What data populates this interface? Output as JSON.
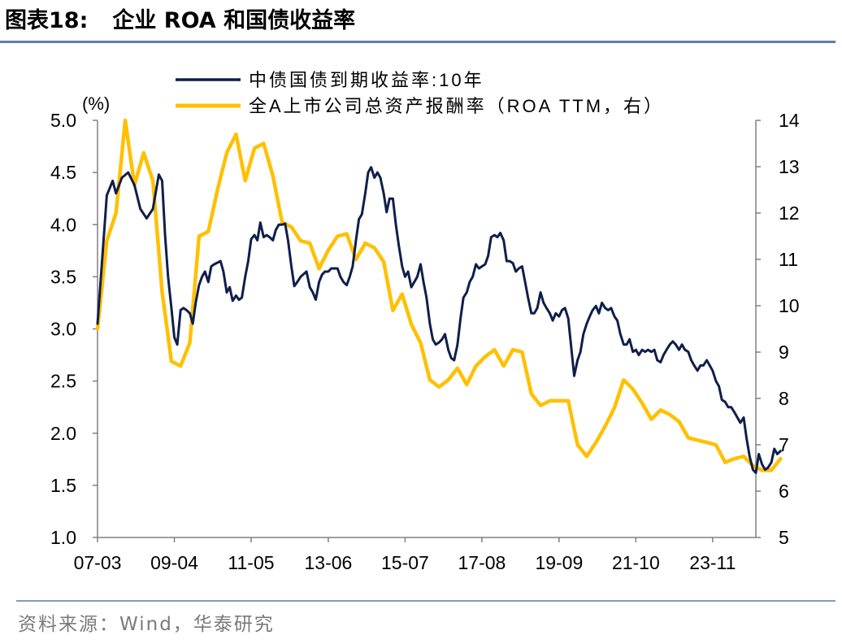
{
  "figure": {
    "title_prefix": "图表18:",
    "title_text": "企业 ROA 和国债收益率",
    "source": "资料来源：Wind，华泰研究"
  },
  "chart_data": {
    "type": "line",
    "left_axis": {
      "unit_label": "(%)",
      "min": 1.0,
      "max": 5.0,
      "ticks": [
        "1.0",
        "1.5",
        "2.0",
        "2.5",
        "3.0",
        "3.5",
        "4.0",
        "4.5",
        "5.0"
      ]
    },
    "right_axis": {
      "min": 5,
      "max": 14,
      "ticks": [
        "5",
        "6",
        "7",
        "8",
        "9",
        "10",
        "11",
        "12",
        "13",
        "14"
      ]
    },
    "x_axis": {
      "start": 2007.17,
      "end": 2025.0,
      "tick_labels": [
        "07-03",
        "09-04",
        "11-05",
        "13-06",
        "15-07",
        "17-08",
        "19-09",
        "21-10",
        "23-11"
      ],
      "tick_positions": [
        2007.17,
        2009.25,
        2011.33,
        2013.42,
        2015.5,
        2017.58,
        2019.67,
        2021.75,
        2023.83
      ]
    },
    "legend_position": "top-center",
    "series": [
      {
        "name": "中债国债到期收益率:10年",
        "axis": "left",
        "color": "#0f1f4b",
        "points": [
          [
            2007.17,
            3.05
          ],
          [
            2007.42,
            4.28
          ],
          [
            2007.58,
            4.42
          ],
          [
            2007.67,
            4.3
          ],
          [
            2007.83,
            4.45
          ],
          [
            2008.0,
            4.5
          ],
          [
            2008.17,
            4.38
          ],
          [
            2008.33,
            4.15
          ],
          [
            2008.5,
            4.06
          ],
          [
            2008.67,
            4.15
          ],
          [
            2008.83,
            4.48
          ],
          [
            2008.92,
            4.42
          ],
          [
            2009.0,
            3.9
          ],
          [
            2009.08,
            3.5
          ],
          [
            2009.17,
            3.2
          ],
          [
            2009.25,
            2.92
          ],
          [
            2009.33,
            2.85
          ],
          [
            2009.42,
            3.18
          ],
          [
            2009.5,
            3.2
          ],
          [
            2009.58,
            3.18
          ],
          [
            2009.67,
            3.15
          ],
          [
            2009.75,
            3.05
          ],
          [
            2009.83,
            3.25
          ],
          [
            2009.92,
            3.42
          ],
          [
            2010.0,
            3.5
          ],
          [
            2010.08,
            3.55
          ],
          [
            2010.17,
            3.45
          ],
          [
            2010.25,
            3.6
          ],
          [
            2010.33,
            3.62
          ],
          [
            2010.5,
            3.65
          ],
          [
            2010.58,
            3.55
          ],
          [
            2010.67,
            3.35
          ],
          [
            2010.75,
            3.4
          ],
          [
            2010.83,
            3.27
          ],
          [
            2010.92,
            3.32
          ],
          [
            2011.0,
            3.28
          ],
          [
            2011.08,
            3.3
          ],
          [
            2011.17,
            3.5
          ],
          [
            2011.25,
            3.65
          ],
          [
            2011.33,
            3.86
          ],
          [
            2011.42,
            3.9
          ],
          [
            2011.5,
            3.85
          ],
          [
            2011.58,
            4.02
          ],
          [
            2011.67,
            3.88
          ],
          [
            2011.75,
            3.9
          ],
          [
            2011.83,
            3.88
          ],
          [
            2011.92,
            3.85
          ],
          [
            2012.0,
            3.95
          ],
          [
            2012.08,
            4.0
          ],
          [
            2012.17,
            4.0
          ],
          [
            2012.25,
            4.01
          ],
          [
            2012.33,
            3.85
          ],
          [
            2012.42,
            3.6
          ],
          [
            2012.5,
            3.41
          ],
          [
            2012.58,
            3.45
          ],
          [
            2012.67,
            3.5
          ],
          [
            2012.83,
            3.55
          ],
          [
            2012.92,
            3.4
          ],
          [
            2013.0,
            3.35
          ],
          [
            2013.08,
            3.28
          ],
          [
            2013.17,
            3.45
          ],
          [
            2013.25,
            3.52
          ],
          [
            2013.33,
            3.55
          ],
          [
            2013.42,
            3.55
          ],
          [
            2013.5,
            3.58
          ],
          [
            2013.67,
            3.58
          ],
          [
            2013.75,
            3.5
          ],
          [
            2013.83,
            3.45
          ],
          [
            2013.92,
            3.42
          ],
          [
            2014.0,
            3.5
          ],
          [
            2014.08,
            3.6
          ],
          [
            2014.17,
            3.85
          ],
          [
            2014.25,
            4.05
          ],
          [
            2014.33,
            4.1
          ],
          [
            2014.42,
            4.3
          ],
          [
            2014.5,
            4.5
          ],
          [
            2014.58,
            4.55
          ],
          [
            2014.67,
            4.45
          ],
          [
            2014.75,
            4.5
          ],
          [
            2014.83,
            4.45
          ],
          [
            2014.92,
            4.3
          ],
          [
            2015.0,
            4.12
          ],
          [
            2015.08,
            4.25
          ],
          [
            2015.17,
            4.25
          ],
          [
            2015.25,
            4.0
          ],
          [
            2015.33,
            3.8
          ],
          [
            2015.42,
            3.6
          ],
          [
            2015.5,
            3.5
          ],
          [
            2015.58,
            3.55
          ],
          [
            2015.67,
            3.4
          ],
          [
            2015.75,
            3.45
          ],
          [
            2015.83,
            3.5
          ],
          [
            2015.92,
            3.62
          ],
          [
            2016.0,
            3.45
          ],
          [
            2016.08,
            3.3
          ],
          [
            2016.17,
            3.05
          ],
          [
            2016.25,
            2.9
          ],
          [
            2016.33,
            2.85
          ],
          [
            2016.42,
            2.87
          ],
          [
            2016.5,
            2.9
          ],
          [
            2016.58,
            2.95
          ],
          [
            2016.67,
            2.8
          ],
          [
            2016.75,
            2.72
          ],
          [
            2016.83,
            2.7
          ],
          [
            2016.92,
            2.85
          ],
          [
            2017.0,
            3.1
          ],
          [
            2017.08,
            3.3
          ],
          [
            2017.17,
            3.35
          ],
          [
            2017.25,
            3.45
          ],
          [
            2017.33,
            3.5
          ],
          [
            2017.42,
            3.62
          ],
          [
            2017.5,
            3.58
          ],
          [
            2017.58,
            3.6
          ],
          [
            2017.67,
            3.62
          ],
          [
            2017.75,
            3.7
          ],
          [
            2017.83,
            3.88
          ],
          [
            2017.92,
            3.9
          ],
          [
            2018.0,
            3.88
          ],
          [
            2018.08,
            3.92
          ],
          [
            2018.17,
            3.85
          ],
          [
            2018.25,
            3.65
          ],
          [
            2018.33,
            3.65
          ],
          [
            2018.42,
            3.63
          ],
          [
            2018.5,
            3.55
          ],
          [
            2018.58,
            3.58
          ],
          [
            2018.67,
            3.6
          ],
          [
            2018.75,
            3.45
          ],
          [
            2018.83,
            3.3
          ],
          [
            2018.92,
            3.15
          ],
          [
            2019.0,
            3.15
          ],
          [
            2019.08,
            3.2
          ],
          [
            2019.17,
            3.35
          ],
          [
            2019.25,
            3.25
          ],
          [
            2019.33,
            3.2
          ],
          [
            2019.42,
            3.15
          ],
          [
            2019.5,
            3.08
          ],
          [
            2019.58,
            3.15
          ],
          [
            2019.67,
            3.12
          ],
          [
            2019.75,
            3.18
          ],
          [
            2019.83,
            3.2
          ],
          [
            2019.92,
            3.1
          ],
          [
            2020.0,
            2.82
          ],
          [
            2020.08,
            2.55
          ],
          [
            2020.17,
            2.7
          ],
          [
            2020.25,
            2.78
          ],
          [
            2020.33,
            2.95
          ],
          [
            2020.42,
            3.05
          ],
          [
            2020.5,
            3.12
          ],
          [
            2020.58,
            3.18
          ],
          [
            2020.67,
            3.22
          ],
          [
            2020.75,
            3.15
          ],
          [
            2020.83,
            3.25
          ],
          [
            2020.92,
            3.2
          ],
          [
            2021.0,
            3.18
          ],
          [
            2021.08,
            3.2
          ],
          [
            2021.17,
            3.12
          ],
          [
            2021.25,
            3.08
          ],
          [
            2021.33,
            2.95
          ],
          [
            2021.42,
            2.85
          ],
          [
            2021.5,
            2.85
          ],
          [
            2021.58,
            2.9
          ],
          [
            2021.67,
            2.78
          ],
          [
            2021.75,
            2.8
          ],
          [
            2021.83,
            2.75
          ],
          [
            2021.92,
            2.8
          ],
          [
            2022.0,
            2.78
          ],
          [
            2022.08,
            2.8
          ],
          [
            2022.17,
            2.78
          ],
          [
            2022.25,
            2.8
          ],
          [
            2022.33,
            2.7
          ],
          [
            2022.42,
            2.68
          ],
          [
            2022.5,
            2.75
          ],
          [
            2022.58,
            2.8
          ],
          [
            2022.67,
            2.85
          ],
          [
            2022.75,
            2.88
          ],
          [
            2022.83,
            2.85
          ],
          [
            2022.92,
            2.8
          ],
          [
            2023.0,
            2.85
          ],
          [
            2023.08,
            2.8
          ],
          [
            2023.17,
            2.78
          ],
          [
            2023.25,
            2.7
          ],
          [
            2023.33,
            2.65
          ],
          [
            2023.42,
            2.6
          ],
          [
            2023.5,
            2.65
          ],
          [
            2023.58,
            2.65
          ],
          [
            2023.67,
            2.7
          ],
          [
            2023.75,
            2.65
          ],
          [
            2023.83,
            2.6
          ],
          [
            2023.92,
            2.5
          ],
          [
            2024.0,
            2.45
          ],
          [
            2024.08,
            2.32
          ],
          [
            2024.17,
            2.3
          ],
          [
            2024.25,
            2.25
          ],
          [
            2024.33,
            2.25
          ],
          [
            2024.42,
            2.2
          ],
          [
            2024.5,
            2.15
          ],
          [
            2024.58,
            2.1
          ],
          [
            2024.67,
            2.15
          ],
          [
            2024.75,
            1.95
          ],
          [
            2024.83,
            1.78
          ],
          [
            2024.92,
            1.65
          ],
          [
            2025.0,
            1.62
          ],
          [
            2025.08,
            1.8
          ],
          [
            2025.17,
            1.7
          ],
          [
            2025.25,
            1.65
          ],
          [
            2025.33,
            1.67
          ],
          [
            2025.42,
            1.72
          ],
          [
            2025.5,
            1.85
          ],
          [
            2025.58,
            1.8
          ],
          [
            2025.67,
            1.83
          ]
        ]
      },
      {
        "name": "全A上市公司总资产报酬率（ROA TTM，右）",
        "axis": "right",
        "color": "#ffc000",
        "points": [
          [
            2007.17,
            9.5
          ],
          [
            2007.42,
            11.4
          ],
          [
            2007.67,
            12
          ],
          [
            2007.92,
            14.0
          ],
          [
            2008.17,
            12.6
          ],
          [
            2008.42,
            13.3
          ],
          [
            2008.67,
            12.7
          ],
          [
            2008.92,
            10.3
          ],
          [
            2009.17,
            8.8
          ],
          [
            2009.42,
            8.7
          ],
          [
            2009.67,
            9.2
          ],
          [
            2009.92,
            11.5
          ],
          [
            2010.17,
            11.6
          ],
          [
            2010.42,
            12.5
          ],
          [
            2010.67,
            13.3
          ],
          [
            2010.92,
            13.7
          ],
          [
            2011.17,
            12.7
          ],
          [
            2011.42,
            13.4
          ],
          [
            2011.67,
            13.5
          ],
          [
            2011.92,
            12.8
          ],
          [
            2012.17,
            11.8
          ],
          [
            2012.42,
            11.7
          ],
          [
            2012.67,
            11.4
          ],
          [
            2012.92,
            11.35
          ],
          [
            2013.17,
            10.8
          ],
          [
            2013.42,
            11.2
          ],
          [
            2013.67,
            11.5
          ],
          [
            2013.92,
            11.55
          ],
          [
            2014.17,
            11.0
          ],
          [
            2014.42,
            11.35
          ],
          [
            2014.67,
            11.25
          ],
          [
            2014.92,
            10.95
          ],
          [
            2015.17,
            9.9
          ],
          [
            2015.42,
            10.25
          ],
          [
            2015.67,
            9.6
          ],
          [
            2015.92,
            9.2
          ],
          [
            2016.17,
            8.4
          ],
          [
            2016.42,
            8.25
          ],
          [
            2016.67,
            8.4
          ],
          [
            2016.92,
            8.65
          ],
          [
            2017.17,
            8.3
          ],
          [
            2017.42,
            8.7
          ],
          [
            2017.67,
            8.9
          ],
          [
            2017.92,
            9.05
          ],
          [
            2018.17,
            8.7
          ],
          [
            2018.42,
            9.05
          ],
          [
            2018.67,
            9.0
          ],
          [
            2018.92,
            8.1
          ],
          [
            2019.17,
            7.85
          ],
          [
            2019.42,
            7.95
          ],
          [
            2019.67,
            7.95
          ],
          [
            2019.92,
            7.95
          ],
          [
            2020.17,
            7.0
          ],
          [
            2020.42,
            6.75
          ],
          [
            2020.67,
            7.05
          ],
          [
            2020.92,
            7.4
          ],
          [
            2021.17,
            7.8
          ],
          [
            2021.42,
            8.4
          ],
          [
            2021.67,
            8.2
          ],
          [
            2021.92,
            7.9
          ],
          [
            2022.17,
            7.55
          ],
          [
            2022.42,
            7.75
          ],
          [
            2022.67,
            7.65
          ],
          [
            2022.92,
            7.5
          ],
          [
            2023.17,
            7.15
          ],
          [
            2023.42,
            7.1
          ],
          [
            2023.67,
            7.05
          ],
          [
            2023.92,
            7.0
          ],
          [
            2024.17,
            6.62
          ],
          [
            2024.42,
            6.7
          ],
          [
            2024.67,
            6.75
          ],
          [
            2024.92,
            6.55
          ],
          [
            2025.17,
            6.45
          ],
          [
            2025.42,
            6.45
          ],
          [
            2025.67,
            6.7
          ]
        ]
      }
    ]
  }
}
